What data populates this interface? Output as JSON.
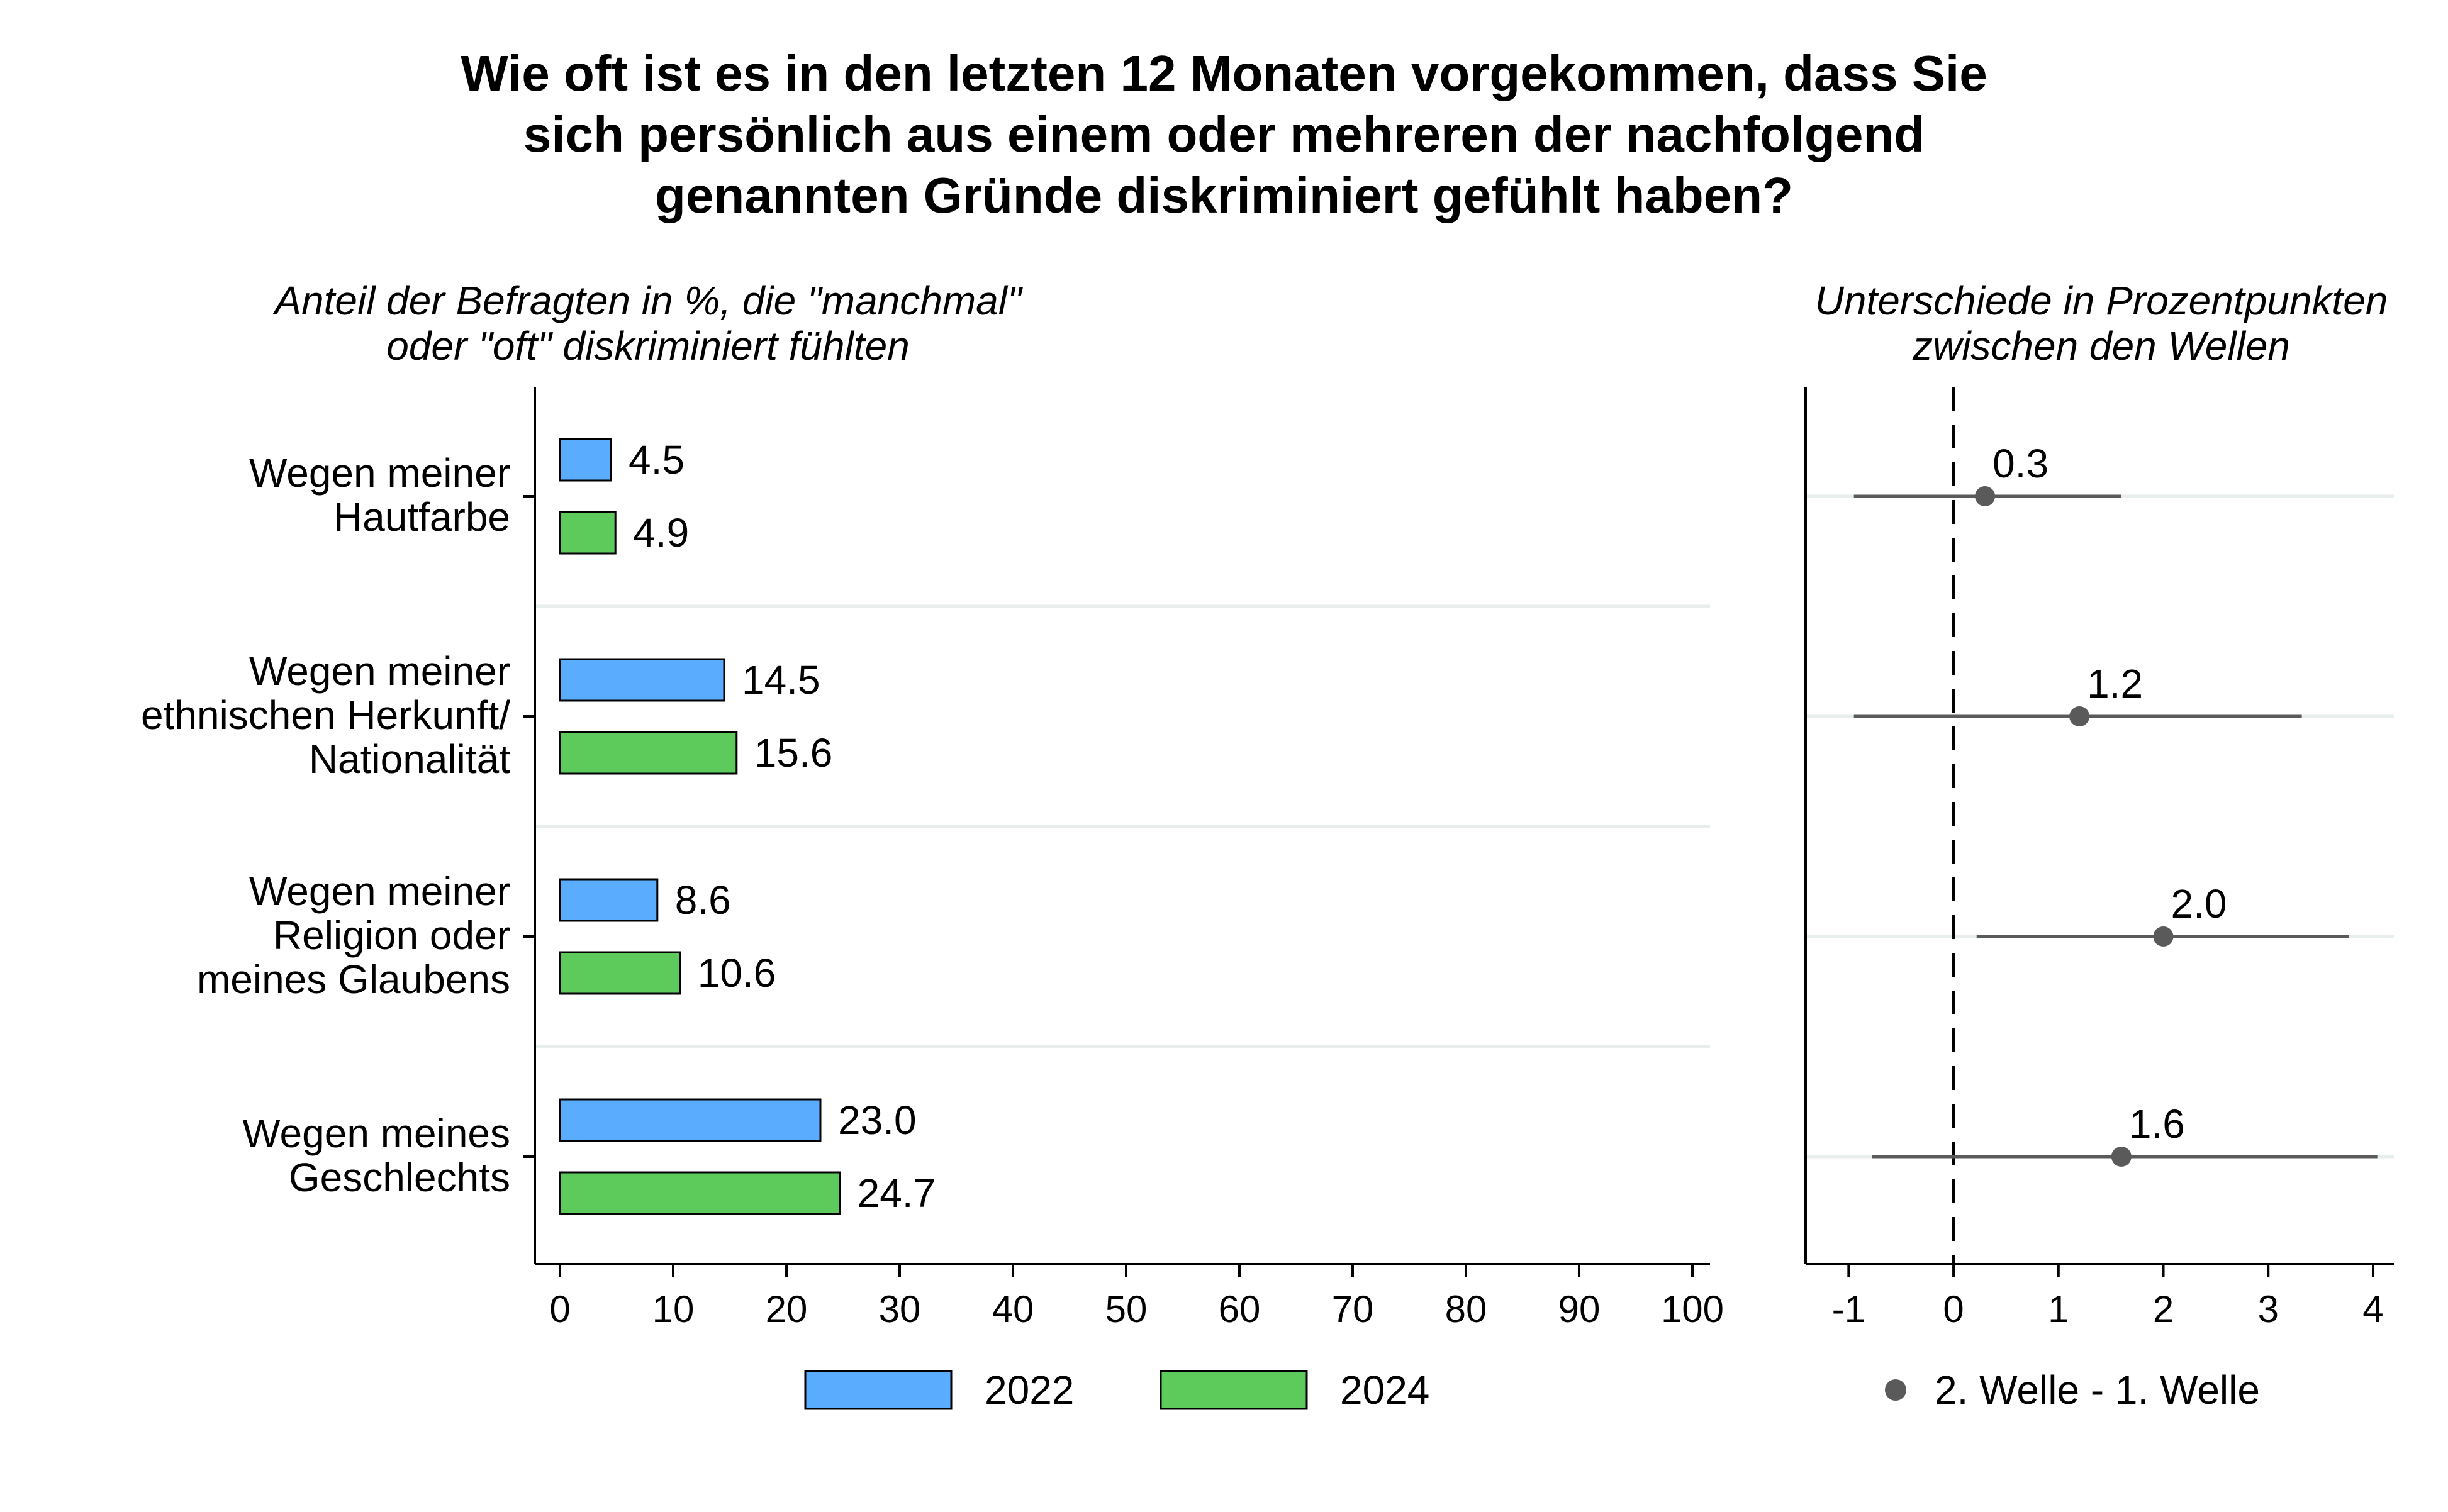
{
  "title_lines": [
    "Wie oft ist es in den letzten 12 Monaten vorgekommen, dass Sie",
    "sich persönlich aus einem oder mehreren der nachfolgend",
    "genannten Gründe diskriminiert gefühlt haben?"
  ],
  "left_panel_title_lines": [
    "Anteil der Befragten in %, die \"manchmal\"",
    "oder \"oft\" diskriminiert fühlten"
  ],
  "right_panel_title_lines": [
    "Unterschiede in Prozentpunkten",
    "zwischen den Wellen"
  ],
  "colors": {
    "series_2022": "#5aacff",
    "series_2024": "#5ccb5c",
    "dot": "#5a5a5a",
    "grid": "#e8eeee"
  },
  "chart_data": [
    {
      "type": "bar",
      "orientation": "horizontal",
      "categories": [
        [
          "Wegen meiner",
          "Hautfarbe"
        ],
        [
          "Wegen meiner",
          "ethnischen Herkunft/",
          "Nationalität"
        ],
        [
          "Wegen meiner",
          "Religion oder",
          "meines Glaubens"
        ],
        [
          "Wegen meines",
          "Geschlechts"
        ]
      ],
      "series": [
        {
          "name": "2022",
          "values": [
            4.5,
            14.5,
            8.6,
            23.0
          ],
          "labels": [
            "4.5",
            "14.5",
            "8.6",
            "23.0"
          ]
        },
        {
          "name": "2024",
          "values": [
            4.9,
            15.6,
            10.6,
            24.7
          ],
          "labels": [
            "4.9",
            "15.6",
            "10.6",
            "24.7"
          ]
        }
      ],
      "xlim": [
        0,
        100
      ],
      "xticks": [
        0,
        10,
        20,
        30,
        40,
        50,
        60,
        70,
        80,
        90,
        100
      ],
      "legend": "bottom"
    },
    {
      "type": "scatter",
      "name": "2. Welle - 1. Welle",
      "values": [
        0.3,
        1.2,
        2.0,
        1.6
      ],
      "labels": [
        "0.3",
        "1.2",
        "2.0",
        "1.6"
      ],
      "ci_low": [
        -0.95,
        -0.95,
        0.22,
        -0.78
      ],
      "ci_high": [
        1.6,
        3.32,
        3.77,
        4.04
      ],
      "xlim": [
        -1.2,
        4.3
      ],
      "xticks": [
        -1,
        0,
        1,
        2,
        3,
        4
      ],
      "reference_line": 0,
      "legend": "bottom"
    }
  ]
}
